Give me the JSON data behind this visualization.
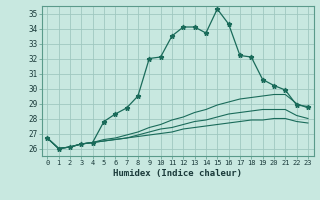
{
  "xlabel": "Humidex (Indice chaleur)",
  "background_color": "#c8e8e0",
  "grid_color": "#a0c8c0",
  "line_color": "#1a6b5a",
  "xlim": [
    -0.5,
    23.5
  ],
  "ylim": [
    25.5,
    35.5
  ],
  "yticks": [
    26,
    27,
    28,
    29,
    30,
    31,
    32,
    33,
    34,
    35
  ],
  "xticks": [
    0,
    1,
    2,
    3,
    4,
    5,
    6,
    7,
    8,
    9,
    10,
    11,
    12,
    13,
    14,
    15,
    16,
    17,
    18,
    19,
    20,
    21,
    22,
    23
  ],
  "series1": [
    26.7,
    26.0,
    26.1,
    26.3,
    26.4,
    27.8,
    28.3,
    28.7,
    29.5,
    32.0,
    32.1,
    33.5,
    34.1,
    34.1,
    33.7,
    35.3,
    34.3,
    32.2,
    32.1,
    30.6,
    30.2,
    29.9,
    28.9,
    28.8
  ],
  "series2": [
    26.7,
    26.0,
    26.1,
    26.3,
    26.4,
    26.6,
    26.7,
    26.9,
    27.1,
    27.4,
    27.6,
    27.9,
    28.1,
    28.4,
    28.6,
    28.9,
    29.1,
    29.3,
    29.4,
    29.5,
    29.6,
    29.6,
    29.0,
    28.7
  ],
  "series3": [
    26.7,
    26.0,
    26.1,
    26.3,
    26.4,
    26.5,
    26.6,
    26.7,
    26.9,
    27.1,
    27.3,
    27.4,
    27.6,
    27.8,
    27.9,
    28.1,
    28.3,
    28.4,
    28.5,
    28.6,
    28.6,
    28.6,
    28.2,
    28.0
  ],
  "series4": [
    26.7,
    26.0,
    26.1,
    26.3,
    26.4,
    26.5,
    26.6,
    26.7,
    26.8,
    26.9,
    27.0,
    27.1,
    27.3,
    27.4,
    27.5,
    27.6,
    27.7,
    27.8,
    27.9,
    27.9,
    28.0,
    28.0,
    27.8,
    27.7
  ]
}
